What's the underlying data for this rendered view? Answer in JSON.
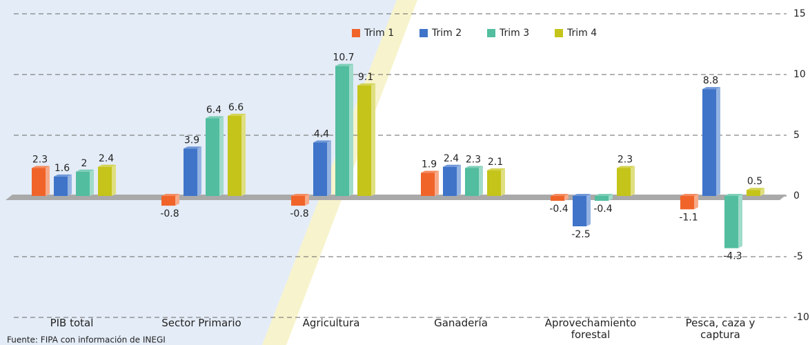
{
  "chart_data": {
    "type": "bar",
    "categories": [
      "PIB total",
      "Sector Primario",
      "Agricultura",
      "Ganadería",
      "Aprovechamiento forestal",
      "Pesca, caza y captura"
    ],
    "series": [
      {
        "name": "Trim 1",
        "color": "#f0642a",
        "values": [
          2.3,
          -0.8,
          -0.8,
          1.9,
          -0.4,
          -1.1
        ]
      },
      {
        "name": "Trim 2",
        "color": "#3f74c9",
        "values": [
          1.6,
          3.9,
          4.4,
          2.4,
          -2.5,
          8.8
        ]
      },
      {
        "name": "Trim 3",
        "color": "#52bd9f",
        "values": [
          2.0,
          6.4,
          10.7,
          2.3,
          -0.4,
          -4.3
        ]
      },
      {
        "name": "Trim 4",
        "color": "#c4c41a",
        "values": [
          2.4,
          6.6,
          9.1,
          2.1,
          2.3,
          0.5
        ]
      }
    ],
    "ylim": [
      -10,
      15
    ],
    "yticks": [
      -10,
      -5,
      0,
      5,
      10,
      15
    ],
    "grid": true,
    "source": "Fuente: FIPA con información de INEGI"
  }
}
